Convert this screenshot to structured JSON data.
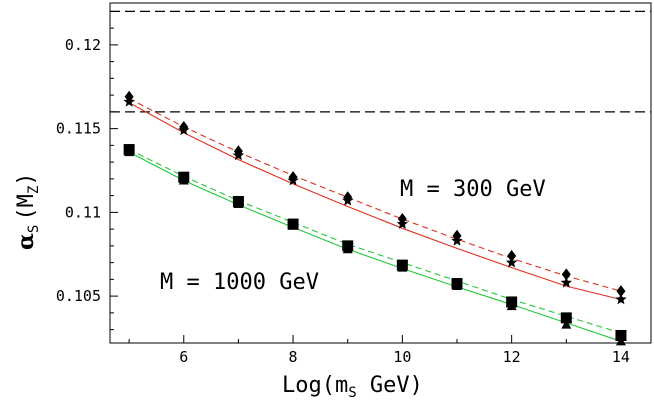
{
  "chart_data": {
    "type": "line",
    "xlabel": "Log(m",
    "xlabel_sub": "S",
    "xlabel_tail": " GeV)",
    "ylabel": "α",
    "ylabel_sub": "S",
    "ylabel_paren": "(M",
    "ylabel_paren_sub": "Z",
    "ylabel_close": ")",
    "xlim": [
      4.65,
      14.55
    ],
    "ylim": [
      0.1022,
      0.1225
    ],
    "xticks": [
      6,
      8,
      10,
      12,
      14
    ],
    "yticks": [
      0.105,
      0.11,
      0.115,
      0.12
    ],
    "ytick_labels": [
      "0.105",
      "0.11",
      "0.115",
      "0.12"
    ],
    "hlines": [
      0.122,
      0.116
    ],
    "annotations": [
      "M = 300 GeV",
      "M = 1000 GeV"
    ],
    "x": [
      5,
      6,
      7,
      8,
      9,
      10,
      11,
      12,
      13,
      14
    ],
    "series": [
      {
        "color": "#e0301e",
        "style": "solid",
        "marker": "none",
        "values": [
          0.11655,
          0.11475,
          0.11315,
          0.1117,
          0.11035,
          0.10905,
          0.10785,
          0.1067,
          0.1056,
          0.1048
        ]
      },
      {
        "color": "#e0301e",
        "style": "dashed",
        "marker": "none",
        "values": [
          0.1168,
          0.1151,
          0.1136,
          0.1122,
          0.1109,
          0.1096,
          0.1084,
          0.10725,
          0.1062,
          0.1053
        ]
      },
      {
        "color": "#000000",
        "style": "none",
        "marker": "diamond",
        "values": [
          0.1169,
          0.1151,
          0.11365,
          0.1121,
          0.1109,
          0.1096,
          0.1086,
          0.1074,
          0.1063,
          0.1053
        ]
      },
      {
        "color": "#000000",
        "style": "none",
        "marker": "star",
        "values": [
          0.1166,
          0.1149,
          0.1134,
          0.1119,
          0.1107,
          0.1093,
          0.1083,
          0.107,
          0.1058,
          0.1048
        ]
      },
      {
        "color": "#22c83a",
        "style": "solid",
        "marker": "none",
        "values": [
          0.1136,
          0.1119,
          0.11045,
          0.1091,
          0.1078,
          0.10665,
          0.10555,
          0.1045,
          0.1034,
          0.1023
        ]
      },
      {
        "color": "#22c83a",
        "style": "dashed",
        "marker": "none",
        "values": [
          0.11375,
          0.11215,
          0.1107,
          0.1094,
          0.1081,
          0.107,
          0.1059,
          0.1048,
          0.1038,
          0.1028
        ]
      },
      {
        "color": "#000000",
        "style": "none",
        "marker": "square",
        "values": [
          0.11375,
          0.1121,
          0.11065,
          0.1093,
          0.108,
          0.10685,
          0.10575,
          0.10465,
          0.1037,
          0.10265
        ]
      },
      {
        "color": "#000000",
        "style": "none",
        "marker": "triangle",
        "values": [
          0.1136,
          0.1119,
          0.1105,
          0.1092,
          0.1078,
          0.1067,
          0.1056,
          0.1044,
          0.1033,
          0.1023
        ]
      }
    ]
  }
}
